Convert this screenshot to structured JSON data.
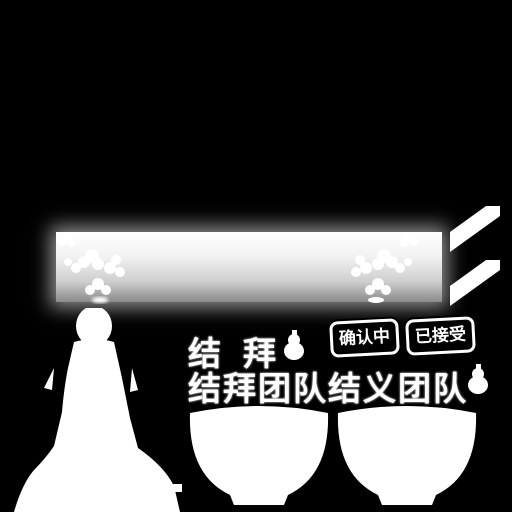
{
  "labels": {
    "jiebai": "结拜",
    "teams": "结拜团队结义团队",
    "confirming": "确认中",
    "accepted": "已接受"
  },
  "icon_names": [
    "flower-cluster-icon",
    "slant-tab-icon",
    "gourd-icon",
    "monk-silhouette-icon",
    "bowl-icon"
  ],
  "colors": {
    "background": "#000000",
    "foreground": "#ffffff"
  }
}
